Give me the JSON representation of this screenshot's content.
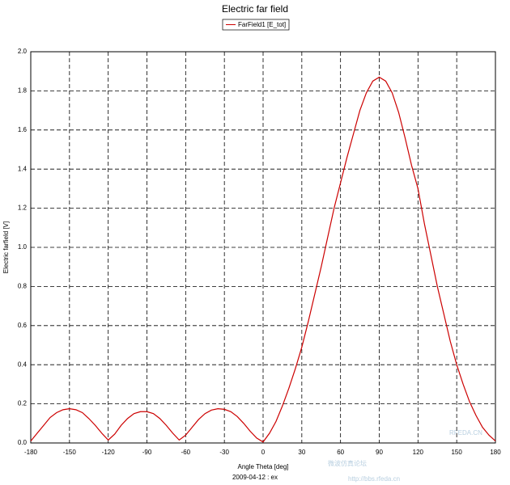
{
  "chart_data": {
    "type": "line",
    "title": "Electric far field",
    "x_label": "Angle Theta [deg]",
    "y_label": "Electric farfield [V]",
    "footer": "2009-04-12 : ex",
    "watermark": [
      "微波仿真论坛",
      "http://bbs.rfeda.cn",
      "RFEDA.CN"
    ],
    "x": [
      -180,
      -175,
      -170,
      -165,
      -160,
      -155,
      -150,
      -145,
      -140,
      -135,
      -130,
      -125,
      -120,
      -115,
      -110,
      -105,
      -100,
      -95,
      -90,
      -85,
      -80,
      -75,
      -70,
      -65,
      -60,
      -55,
      -50,
      -45,
      -40,
      -35,
      -30,
      -25,
      -20,
      -15,
      -10,
      -5,
      0,
      5,
      10,
      15,
      20,
      25,
      30,
      35,
      40,
      45,
      50,
      55,
      60,
      65,
      70,
      75,
      80,
      85,
      90,
      95,
      100,
      105,
      110,
      115,
      120,
      125,
      130,
      135,
      140,
      145,
      150,
      155,
      160,
      165,
      170,
      175,
      180
    ],
    "series": [
      {
        "name": "FarField1 [E_tot]",
        "color": "#cc0000",
        "values": [
          0.01,
          0.05,
          0.09,
          0.13,
          0.155,
          0.17,
          0.175,
          0.17,
          0.155,
          0.125,
          0.09,
          0.05,
          0.015,
          0.045,
          0.09,
          0.125,
          0.15,
          0.16,
          0.16,
          0.15,
          0.125,
          0.09,
          0.05,
          0.015,
          0.04,
          0.08,
          0.12,
          0.15,
          0.168,
          0.175,
          0.172,
          0.16,
          0.135,
          0.1,
          0.06,
          0.025,
          0.005,
          0.05,
          0.11,
          0.19,
          0.28,
          0.38,
          0.49,
          0.62,
          0.76,
          0.9,
          1.05,
          1.2,
          1.33,
          1.46,
          1.58,
          1.7,
          1.79,
          1.85,
          1.87,
          1.85,
          1.79,
          1.69,
          1.56,
          1.42,
          1.3,
          1.12,
          0.96,
          0.8,
          0.66,
          0.52,
          0.4,
          0.3,
          0.21,
          0.14,
          0.08,
          0.04,
          0.01
        ]
      }
    ],
    "xlim": [
      -180,
      180
    ],
    "xticks": [
      -180,
      -150,
      -120,
      -90,
      -60,
      -30,
      0,
      30,
      60,
      90,
      120,
      150,
      180
    ],
    "ylim": [
      0,
      2
    ],
    "yticks": [
      {
        "value": 0,
        "label": "0.0"
      },
      0.2,
      0.4,
      0.6,
      0.8,
      {
        "value": 1,
        "label": "1.0"
      },
      1.2,
      1.4,
      1.6,
      1.8,
      {
        "value": 2,
        "label": "2.0"
      }
    ],
    "grid": true
  }
}
